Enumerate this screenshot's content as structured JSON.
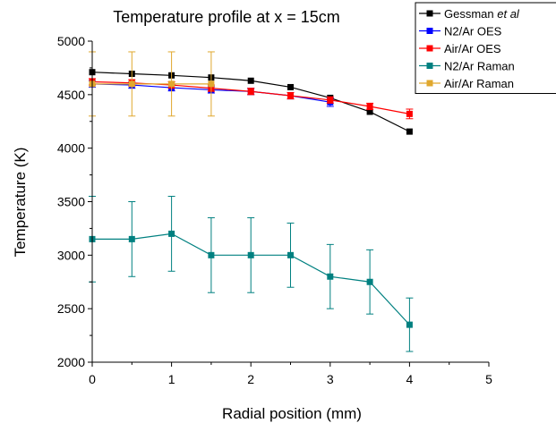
{
  "chart_data": {
    "type": "line",
    "title": "Temperature profile at x = 15cm",
    "xlabel": "Radial position (mm)",
    "ylabel": "Temperature (K)",
    "xlim": [
      0,
      5
    ],
    "ylim": [
      2000,
      5000
    ],
    "xticks": [
      "0",
      "1",
      "2",
      "3",
      "4",
      "5"
    ],
    "yticks": [
      "2000",
      "2500",
      "3000",
      "3500",
      "4000",
      "4500",
      "5000"
    ],
    "grid": false,
    "legend_position": "top-right",
    "series": [
      {
        "name": "Gessman et al",
        "name_prefix": "Gessman ",
        "name_italic": "et al",
        "color": "#000000",
        "marker": "square",
        "x": [
          0,
          0.5,
          1,
          1.5,
          2,
          2.5,
          3,
          3.5,
          4
        ],
        "y": [
          4710,
          4695,
          4680,
          4660,
          4630,
          4570,
          4470,
          4340,
          4155
        ]
      },
      {
        "name": "N2/Ar OES",
        "color": "#0000ff",
        "marker": "square",
        "x": [
          0,
          0.5,
          1,
          1.5,
          2,
          2.5,
          3
        ],
        "y": [
          4600,
          4590,
          4565,
          4545,
          4530,
          4490,
          4430
        ],
        "err": [
          30,
          30,
          30,
          30,
          30,
          30,
          40
        ]
      },
      {
        "name": "Air/Ar OES",
        "color": "#ff0000",
        "marker": "square",
        "x": [
          0,
          0.5,
          1,
          1.5,
          2,
          2.5,
          3,
          3.5,
          4
        ],
        "y": [
          4620,
          4610,
          4590,
          4560,
          4530,
          4490,
          4450,
          4390,
          4320
        ],
        "err": [
          30,
          30,
          30,
          30,
          30,
          30,
          30,
          30,
          45
        ]
      },
      {
        "name": "N2/Ar Raman",
        "color": "#008080",
        "marker": "square",
        "x": [
          0,
          0.5,
          1,
          1.5,
          2,
          2.5,
          3,
          3.5,
          4
        ],
        "y": [
          3150,
          3150,
          3200,
          3000,
          3000,
          3000,
          2800,
          2750,
          2350
        ],
        "err": [
          400,
          350,
          350,
          350,
          350,
          300,
          300,
          300,
          250
        ]
      },
      {
        "name": "Air/Ar Raman",
        "color": "#e0a82e",
        "marker": "square",
        "x": [
          0,
          0.5,
          1,
          1.5
        ],
        "y": [
          4600,
          4600,
          4600,
          4600
        ],
        "err": [
          300,
          300,
          300,
          300
        ]
      }
    ]
  }
}
